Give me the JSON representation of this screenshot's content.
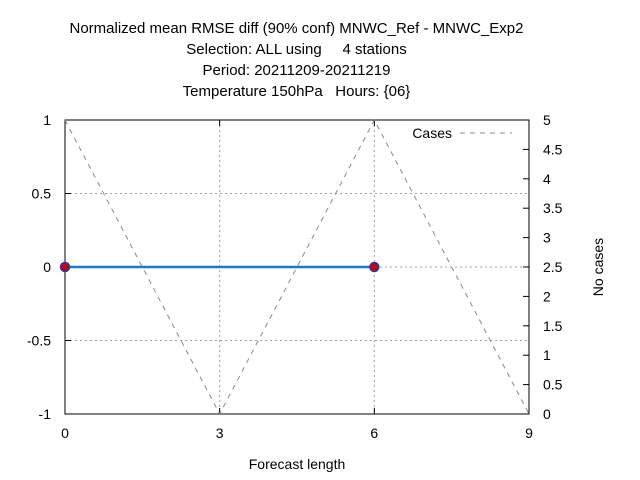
{
  "title_lines": [
    "Normalized mean RMSE diff (90% conf) MNWC_Ref - MNWC_Exp2",
    "Selection: ALL using     4 stations",
    "Period: 20211209-20211219",
    "Temperature 150hPa   Hours: {06}"
  ],
  "chart_data": {
    "type": "line",
    "xlabel": "Forecast length",
    "ylabel": "",
    "y2label": "No cases",
    "xlim": [
      0,
      9
    ],
    "ylim": [
      -1,
      1
    ],
    "y2lim": [
      0,
      5
    ],
    "x_ticks": [
      "0",
      "3",
      "6",
      "9"
    ],
    "y_ticks": [
      "1",
      "0.5",
      "0",
      "-0.5",
      "-1"
    ],
    "y2_ticks": [
      "5",
      "4.5",
      "4",
      "3.5",
      "3",
      "2.5",
      "2",
      "1.5",
      "1",
      "0.5",
      "0"
    ],
    "grid": true,
    "legend_position": "top-right",
    "series": [
      {
        "x": [
          0,
          6
        ],
        "y": [
          0,
          0
        ],
        "axis": "left",
        "line_color": "#1f77d0",
        "marker_color": "#cc0000",
        "marker_edge": "#1a3fb3"
      },
      {
        "name": "Cases",
        "x": [
          0,
          3,
          6,
          9
        ],
        "y": [
          5,
          0,
          5,
          0
        ],
        "axis": "right",
        "line_color": "#888888",
        "dashed": true
      }
    ]
  }
}
